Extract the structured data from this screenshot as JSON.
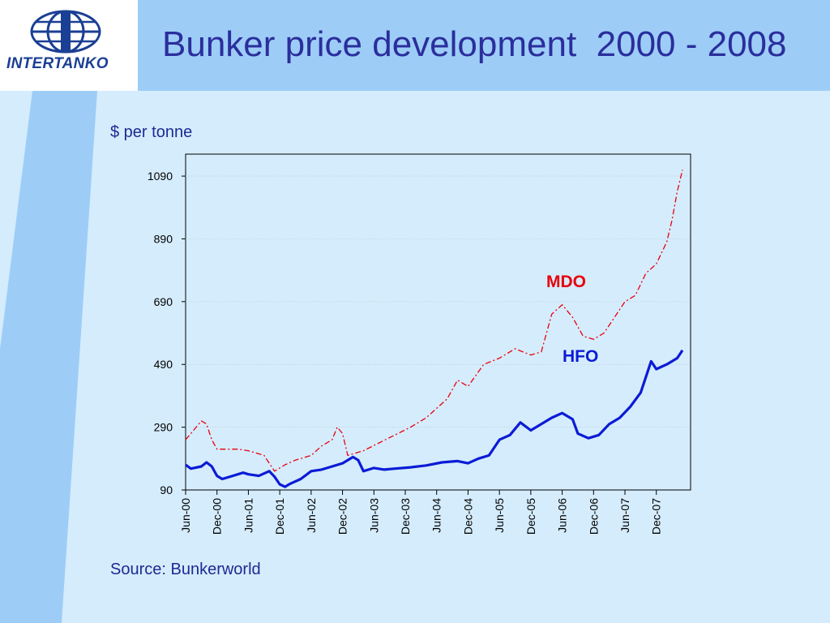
{
  "slide": {
    "title": "Bunker price development  2000 - 2008",
    "unit_label": "$ per tonne",
    "source": "Source: Bunkerworld"
  },
  "logo": {
    "text": "INTERTANKO"
  },
  "colors": {
    "background": "#d5ecfc",
    "header_band": "#9dcdf7",
    "accent_stripe": "#9dcdf7",
    "title": "#2b2e9c",
    "mdo": "#e8000c",
    "hfo": "#0b1bd6"
  },
  "chart_data": {
    "type": "line",
    "title": "",
    "xlabel": "",
    "ylabel": "$ per tonne",
    "ylim": [
      90,
      1160
    ],
    "y_ticks": [
      90,
      290,
      490,
      690,
      890,
      1090
    ],
    "x_range": [
      "2000-06",
      "2008-05"
    ],
    "x_tick_labels": [
      "Jun-00",
      "Dec-00",
      "Jun-01",
      "Dec-01",
      "Jun-02",
      "Dec-02",
      "Jun-03",
      "Dec-03",
      "Jun-04",
      "Dec-04",
      "Jun-05",
      "Dec-05",
      "Jun-06",
      "Dec-06",
      "Jun-07",
      "Dec-07"
    ],
    "x_tick_dates": [
      "2000-06",
      "2000-12",
      "2001-06",
      "2001-12",
      "2002-06",
      "2002-12",
      "2003-06",
      "2003-12",
      "2004-06",
      "2004-12",
      "2005-06",
      "2005-12",
      "2006-06",
      "2006-12",
      "2007-06",
      "2007-12"
    ],
    "grid": true,
    "legend": "inline labels",
    "series": [
      {
        "name": "MDO",
        "style": "dashed-thin",
        "points": [
          [
            "2000-06",
            250
          ],
          [
            "2000-07",
            270
          ],
          [
            "2000-09",
            310
          ],
          [
            "2000-10",
            300
          ],
          [
            "2000-11",
            250
          ],
          [
            "2000-12",
            220
          ],
          [
            "2001-02",
            220
          ],
          [
            "2001-04",
            220
          ],
          [
            "2001-06",
            215
          ],
          [
            "2001-08",
            205
          ],
          [
            "2001-09",
            200
          ],
          [
            "2001-10",
            175
          ],
          [
            "2001-11",
            150
          ],
          [
            "2002-01",
            170
          ],
          [
            "2002-03",
            185
          ],
          [
            "2002-06",
            200
          ],
          [
            "2002-08",
            230
          ],
          [
            "2002-10",
            250
          ],
          [
            "2002-11",
            290
          ],
          [
            "2002-12",
            270
          ],
          [
            "2003-01",
            200
          ],
          [
            "2003-04",
            215
          ],
          [
            "2003-07",
            240
          ],
          [
            "2003-10",
            265
          ],
          [
            "2004-01",
            290
          ],
          [
            "2004-04",
            320
          ],
          [
            "2004-08",
            380
          ],
          [
            "2004-10",
            440
          ],
          [
            "2004-12",
            420
          ],
          [
            "2005-03",
            490
          ],
          [
            "2005-06",
            510
          ],
          [
            "2005-09",
            540
          ],
          [
            "2005-12",
            520
          ],
          [
            "2006-02",
            530
          ],
          [
            "2006-04",
            650
          ],
          [
            "2006-06",
            680
          ],
          [
            "2006-08",
            640
          ],
          [
            "2006-10",
            580
          ],
          [
            "2006-12",
            570
          ],
          [
            "2007-02",
            590
          ],
          [
            "2007-04",
            640
          ],
          [
            "2007-06",
            690
          ],
          [
            "2007-08",
            710
          ],
          [
            "2007-10",
            780
          ],
          [
            "2007-12",
            810
          ],
          [
            "2008-02",
            880
          ],
          [
            "2008-03",
            950
          ],
          [
            "2008-04",
            1040
          ],
          [
            "2008-05",
            1110
          ]
        ]
      },
      {
        "name": "HFO",
        "style": "solid-thick",
        "points": [
          [
            "2000-06",
            170
          ],
          [
            "2000-07",
            158
          ],
          [
            "2000-09",
            165
          ],
          [
            "2000-10",
            178
          ],
          [
            "2000-11",
            165
          ],
          [
            "2000-12",
            135
          ],
          [
            "2001-01",
            125
          ],
          [
            "2001-03",
            135
          ],
          [
            "2001-05",
            145
          ],
          [
            "2001-06",
            140
          ],
          [
            "2001-08",
            135
          ],
          [
            "2001-10",
            150
          ],
          [
            "2001-11",
            132
          ],
          [
            "2001-12",
            108
          ],
          [
            "2002-01",
            100
          ],
          [
            "2002-02",
            110
          ],
          [
            "2002-04",
            125
          ],
          [
            "2002-06",
            150
          ],
          [
            "2002-08",
            155
          ],
          [
            "2002-10",
            165
          ],
          [
            "2002-12",
            175
          ],
          [
            "2003-02",
            195
          ],
          [
            "2003-03",
            185
          ],
          [
            "2003-04",
            150
          ],
          [
            "2003-06",
            160
          ],
          [
            "2003-08",
            155
          ],
          [
            "2003-10",
            158
          ],
          [
            "2004-01",
            162
          ],
          [
            "2004-04",
            168
          ],
          [
            "2004-07",
            178
          ],
          [
            "2004-10",
            182
          ],
          [
            "2004-12",
            175
          ],
          [
            "2005-02",
            190
          ],
          [
            "2005-04",
            200
          ],
          [
            "2005-06",
            250
          ],
          [
            "2005-08",
            265
          ],
          [
            "2005-10",
            305
          ],
          [
            "2005-12",
            280
          ],
          [
            "2006-02",
            300
          ],
          [
            "2006-04",
            320
          ],
          [
            "2006-06",
            335
          ],
          [
            "2006-08",
            315
          ],
          [
            "2006-09",
            270
          ],
          [
            "2006-11",
            255
          ],
          [
            "2007-01",
            265
          ],
          [
            "2007-03",
            300
          ],
          [
            "2007-05",
            320
          ],
          [
            "2007-07",
            355
          ],
          [
            "2007-09",
            400
          ],
          [
            "2007-11",
            500
          ],
          [
            "2007-12",
            475
          ],
          [
            "2008-02",
            490
          ],
          [
            "2008-04",
            510
          ],
          [
            "2008-05",
            535
          ]
        ]
      }
    ]
  }
}
